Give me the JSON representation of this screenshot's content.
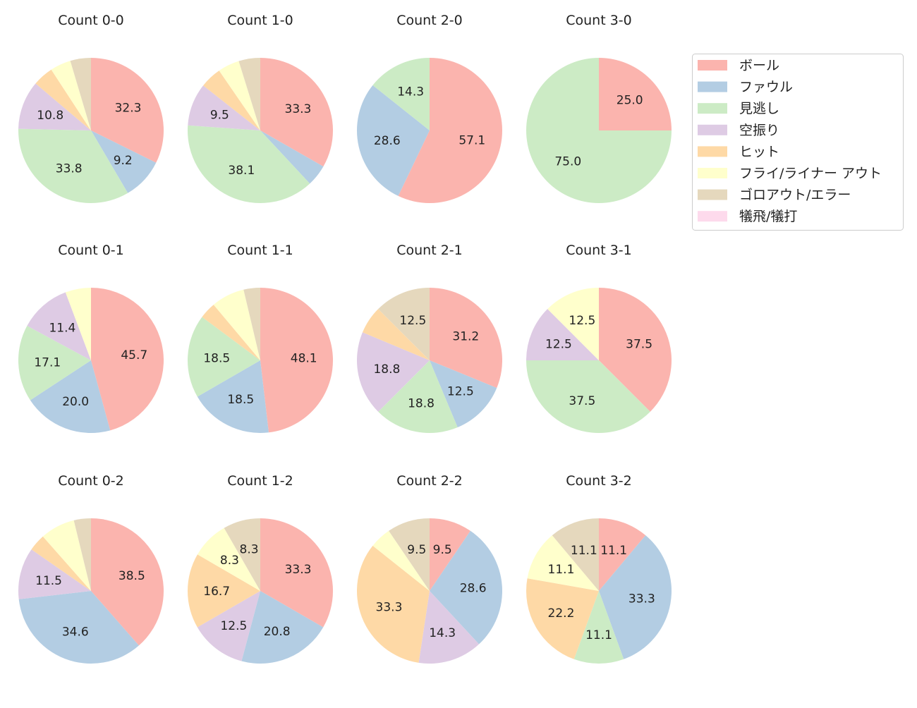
{
  "chart_data": {
    "type": "pie",
    "categories": [
      "ボール",
      "ファウル",
      "見逃し",
      "空振り",
      "ヒット",
      "フライ/ライナー アウト",
      "ゴロアウト/エラー",
      "犠飛/犠打"
    ],
    "colors": [
      "#fbb4ae",
      "#b3cde3",
      "#ccebc5",
      "#decbe4",
      "#fed9a6",
      "#ffffcc",
      "#e5d8bd",
      "#fddaec"
    ],
    "legend_placement": "top-right",
    "start_angle": 90,
    "direction": "clockwise",
    "pies": [
      {
        "title": "Count 0-0",
        "values": [
          32.3,
          9.2,
          33.8,
          10.8,
          4.6,
          4.6,
          4.6,
          0
        ]
      },
      {
        "title": "Count 1-0",
        "values": [
          33.3,
          4.8,
          38.1,
          9.5,
          4.8,
          4.8,
          4.8,
          0
        ]
      },
      {
        "title": "Count 2-0",
        "values": [
          57.1,
          28.6,
          14.3,
          0,
          0,
          0,
          0,
          0
        ]
      },
      {
        "title": "Count 3-0",
        "values": [
          25.0,
          0,
          75.0,
          0,
          0,
          0,
          0,
          0
        ]
      },
      {
        "title": "Count 0-1",
        "values": [
          45.7,
          20.0,
          17.1,
          11.4,
          0,
          5.7,
          0,
          0
        ]
      },
      {
        "title": "Count 1-1",
        "values": [
          48.1,
          18.5,
          18.5,
          0,
          3.7,
          7.4,
          3.7,
          0
        ]
      },
      {
        "title": "Count 2-1",
        "values": [
          31.2,
          12.5,
          18.8,
          18.8,
          6.2,
          0,
          12.5,
          0
        ]
      },
      {
        "title": "Count 3-1",
        "values": [
          37.5,
          0,
          37.5,
          12.5,
          0,
          12.5,
          0,
          0
        ]
      },
      {
        "title": "Count 0-2",
        "values": [
          38.5,
          34.6,
          0,
          11.5,
          3.8,
          7.7,
          3.8,
          0
        ]
      },
      {
        "title": "Count 1-2",
        "values": [
          33.3,
          20.8,
          0,
          12.5,
          16.7,
          8.3,
          8.3,
          0
        ]
      },
      {
        "title": "Count 2-2",
        "values": [
          9.5,
          28.6,
          0,
          14.3,
          33.3,
          4.8,
          9.5,
          0
        ]
      },
      {
        "title": "Count 3-2",
        "values": [
          11.1,
          33.3,
          11.1,
          0,
          22.2,
          11.1,
          11.1,
          0
        ]
      }
    ]
  }
}
